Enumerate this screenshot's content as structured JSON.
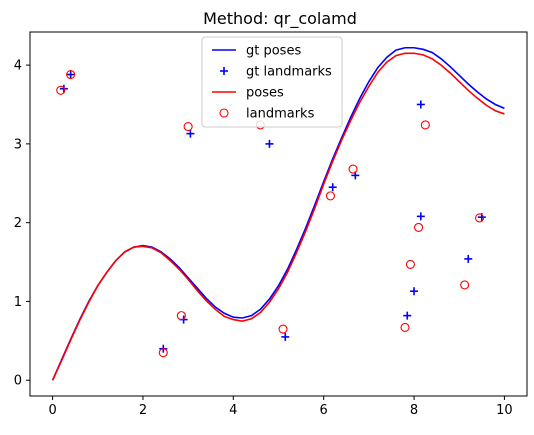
{
  "chart_data": {
    "type": "line",
    "title": "Method: qr_colamd",
    "xlabel": "",
    "ylabel": "",
    "xlim": [
      -0.5,
      10.5
    ],
    "ylim": [
      -0.2,
      4.42
    ],
    "xticks": [
      0,
      2,
      4,
      6,
      8,
      10
    ],
    "yticks": [
      0,
      1,
      2,
      3,
      4
    ],
    "grid": false,
    "legend": "upper-center",
    "series": [
      {
        "name": "gt poses",
        "kind": "line",
        "color": "#0000ff",
        "x": [
          0,
          0.2,
          0.4,
          0.6,
          0.8,
          1.0,
          1.2,
          1.4,
          1.6,
          1.8,
          2.0,
          2.2,
          2.4,
          2.6,
          2.8,
          3.0,
          3.2,
          3.4,
          3.6,
          3.8,
          4.0,
          4.2,
          4.4,
          4.6,
          4.8,
          5.0,
          5.2,
          5.4,
          5.6,
          5.8,
          6.0,
          6.2,
          6.4,
          6.6,
          6.8,
          7.0,
          7.2,
          7.4,
          7.6,
          7.8,
          8.0,
          8.2,
          8.4,
          8.6,
          8.8,
          9.0,
          9.2,
          9.4,
          9.6,
          9.8,
          10.0
        ],
        "y": [
          0.0,
          0.26,
          0.52,
          0.77,
          1.0,
          1.2,
          1.37,
          1.52,
          1.63,
          1.69,
          1.71,
          1.69,
          1.63,
          1.54,
          1.43,
          1.3,
          1.17,
          1.04,
          0.93,
          0.85,
          0.8,
          0.79,
          0.82,
          0.9,
          1.03,
          1.2,
          1.41,
          1.66,
          1.93,
          2.22,
          2.52,
          2.81,
          3.08,
          3.34,
          3.58,
          3.79,
          3.97,
          4.1,
          4.19,
          4.22,
          4.22,
          4.2,
          4.16,
          4.08,
          3.98,
          3.87,
          3.76,
          3.66,
          3.57,
          3.5,
          3.45
        ]
      },
      {
        "name": "gt landmarks",
        "kind": "scatter",
        "marker": "plus",
        "color": "#0000ff",
        "x": [
          0.25,
          0.4,
          3.05,
          4.8,
          2.45,
          2.9,
          5.15,
          6.2,
          6.7,
          8.15,
          8.15,
          9.5,
          9.2,
          8.0,
          7.85
        ],
        "y": [
          3.7,
          3.88,
          3.13,
          3.0,
          0.4,
          0.77,
          0.55,
          2.45,
          2.6,
          3.5,
          2.08,
          2.07,
          1.54,
          1.13,
          0.82
        ]
      },
      {
        "name": "poses",
        "kind": "line",
        "color": "#ff0000",
        "x": [
          0,
          0.2,
          0.4,
          0.6,
          0.8,
          1.0,
          1.2,
          1.4,
          1.6,
          1.8,
          2.0,
          2.2,
          2.4,
          2.6,
          2.8,
          3.0,
          3.2,
          3.4,
          3.6,
          3.8,
          4.0,
          4.2,
          4.4,
          4.6,
          4.8,
          5.0,
          5.2,
          5.4,
          5.6,
          5.8,
          6.0,
          6.2,
          6.4,
          6.6,
          6.8,
          7.0,
          7.2,
          7.4,
          7.6,
          7.8,
          8.0,
          8.2,
          8.4,
          8.6,
          8.8,
          9.0,
          9.2,
          9.4,
          9.6,
          9.8,
          10.0
        ],
        "y": [
          0.0,
          0.25,
          0.51,
          0.76,
          0.99,
          1.2,
          1.37,
          1.52,
          1.63,
          1.69,
          1.7,
          1.68,
          1.62,
          1.52,
          1.41,
          1.28,
          1.14,
          1.01,
          0.9,
          0.81,
          0.77,
          0.75,
          0.78,
          0.86,
          0.99,
          1.16,
          1.37,
          1.62,
          1.89,
          2.18,
          2.49,
          2.78,
          3.05,
          3.3,
          3.53,
          3.73,
          3.91,
          4.04,
          4.12,
          4.15,
          4.15,
          4.13,
          4.08,
          4.0,
          3.9,
          3.79,
          3.68,
          3.58,
          3.49,
          3.42,
          3.38
        ]
      },
      {
        "name": "landmarks",
        "kind": "scatter",
        "marker": "circle",
        "color": "#ff0000",
        "x": [
          0.18,
          0.4,
          3.0,
          4.6,
          2.45,
          2.85,
          5.1,
          6.15,
          6.65,
          8.25,
          8.1,
          9.45,
          9.12,
          7.92,
          7.8
        ],
        "y": [
          3.68,
          3.88,
          3.22,
          3.24,
          0.35,
          0.82,
          0.65,
          2.34,
          2.68,
          3.24,
          1.94,
          2.06,
          1.21,
          1.47,
          0.67
        ]
      }
    ]
  }
}
